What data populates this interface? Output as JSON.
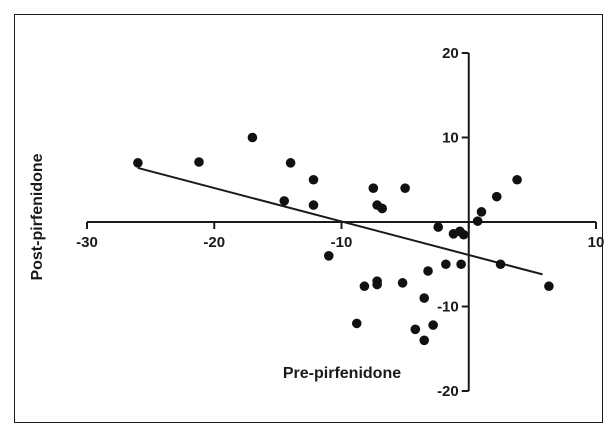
{
  "chart_data": {
    "type": "scatter",
    "title": "",
    "xlabel": "Pre-pirfenidone",
    "ylabel": "Post-pirfenidone",
    "xlim": [
      -30,
      10
    ],
    "ylim": [
      -20,
      20
    ],
    "grid": false,
    "x_ticks": [
      -30,
      -20,
      -10,
      0,
      10
    ],
    "x_tick_labels": [
      "-30",
      "-20",
      "-10",
      "",
      "10"
    ],
    "y_ticks": [
      -20,
      -10,
      10,
      20
    ],
    "y_tick_labels": [
      "-20",
      "-10",
      "10",
      "20"
    ],
    "points": [
      {
        "x": -26,
        "y": 7
      },
      {
        "x": -21.2,
        "y": 7.1
      },
      {
        "x": -17,
        "y": 10
      },
      {
        "x": -14,
        "y": 7
      },
      {
        "x": -14.5,
        "y": 2.5
      },
      {
        "x": -12.2,
        "y": 5
      },
      {
        "x": -12.2,
        "y": 2
      },
      {
        "x": -11,
        "y": -4
      },
      {
        "x": -8.8,
        "y": -12
      },
      {
        "x": -8.2,
        "y": -7.6
      },
      {
        "x": -7.5,
        "y": 4
      },
      {
        "x": -7.2,
        "y": 2
      },
      {
        "x": -6.8,
        "y": 1.6
      },
      {
        "x": -7.2,
        "y": -7
      },
      {
        "x": -7.2,
        "y": -7.4
      },
      {
        "x": -5,
        "y": 4
      },
      {
        "x": -5.2,
        "y": -7.2
      },
      {
        "x": -4.2,
        "y": -12.7
      },
      {
        "x": -3.5,
        "y": -9
      },
      {
        "x": -3.5,
        "y": -14
      },
      {
        "x": -3.2,
        "y": -5.8
      },
      {
        "x": -2.8,
        "y": -12.2
      },
      {
        "x": -2.4,
        "y": -0.6
      },
      {
        "x": -1.8,
        "y": -5
      },
      {
        "x": -1.2,
        "y": -1.4
      },
      {
        "x": -0.7,
        "y": -1.1
      },
      {
        "x": -0.6,
        "y": -5
      },
      {
        "x": -0.4,
        "y": -1.5
      },
      {
        "x": 0.7,
        "y": 0.1
      },
      {
        "x": 1,
        "y": 1.2
      },
      {
        "x": 2.2,
        "y": 3
      },
      {
        "x": 2.5,
        "y": -5
      },
      {
        "x": 3.8,
        "y": 5
      },
      {
        "x": 6.3,
        "y": -7.6
      }
    ],
    "regression_line": {
      "x1": -26,
      "y1": 6.4,
      "x2": 5.8,
      "y2": -6.2
    }
  }
}
